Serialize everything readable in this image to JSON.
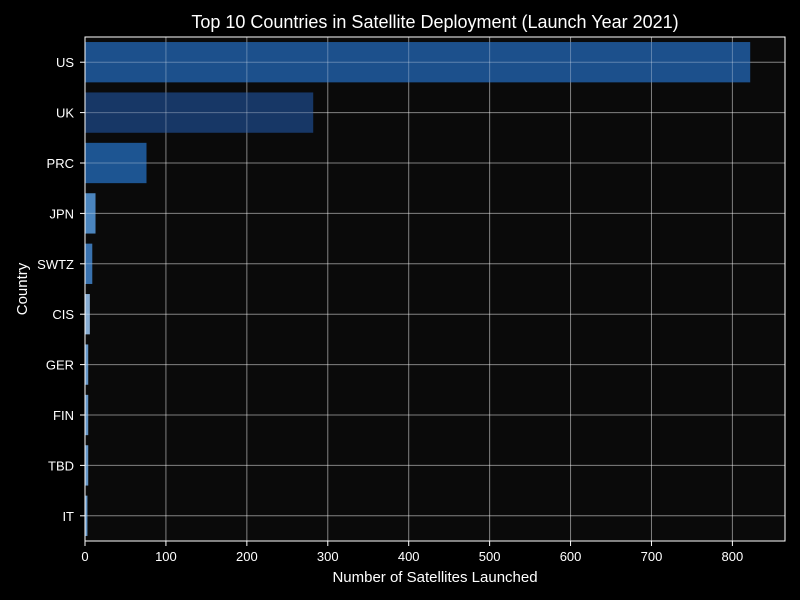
{
  "chart_data": {
    "type": "bar",
    "orientation": "horizontal",
    "title": "Top 10 Countries in Satellite Deployment (Launch Year 2021)",
    "xlabel": "Number of Satellites Launched",
    "ylabel": "Country",
    "categories": [
      "US",
      "UK",
      "PRC",
      "JPN",
      "SWTZ",
      "CIS",
      "GER",
      "FIN",
      "TBD",
      "IT"
    ],
    "values": [
      822,
      282,
      76,
      13,
      9,
      6,
      4,
      4,
      4,
      3
    ],
    "bar_colors": [
      "#1e5494",
      "#183a6c",
      "#1f5a9a",
      "#4f8cc8",
      "#3c78b8",
      "#8fb6de",
      "#6a9ed2",
      "#6a9ed2",
      "#6a9ed2",
      "#6a9ed2"
    ],
    "xlim": [
      0,
      865
    ],
    "xticks": [
      0,
      100,
      200,
      300,
      400,
      500,
      600,
      700,
      800
    ],
    "grid": true,
    "background": "#000000",
    "plot_background": "#0a0a0a"
  }
}
